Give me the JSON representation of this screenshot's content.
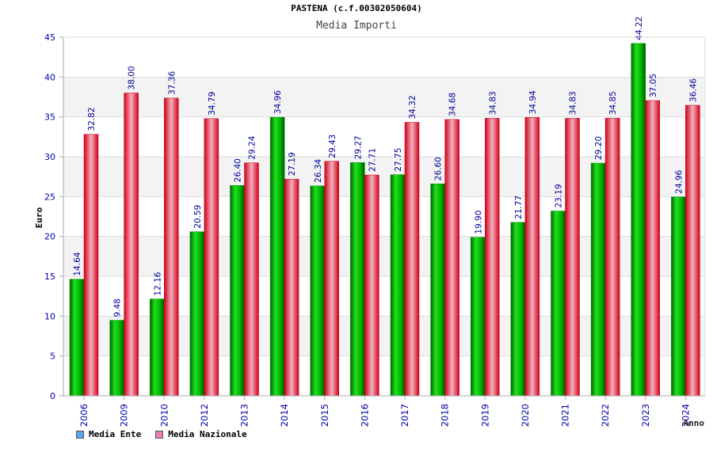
{
  "chart_data": {
    "type": "bar",
    "title": "PASTENA (c.f.00302050604)",
    "subtitle": "Media Importi",
    "ylabel": "Euro",
    "xlabel": "Anno",
    "ylim": [
      0,
      45
    ],
    "yticks": [
      0,
      5,
      10,
      15,
      20,
      25,
      30,
      35,
      40,
      45
    ],
    "categories": [
      "2006",
      "2009",
      "2010",
      "2012",
      "2013",
      "2014",
      "2015",
      "2016",
      "2017",
      "2018",
      "2019",
      "2020",
      "2021",
      "2022",
      "2023",
      "2024"
    ],
    "series": [
      {
        "name": "Media Ente",
        "color": "#00c000",
        "values": [
          14.64,
          9.48,
          12.16,
          20.59,
          26.4,
          34.96,
          26.34,
          29.27,
          27.75,
          26.6,
          19.9,
          21.77,
          23.19,
          29.2,
          44.22,
          24.96
        ]
      },
      {
        "name": "Media Nazionale",
        "color": "#e8102a",
        "values": [
          32.82,
          38.0,
          37.36,
          34.79,
          29.24,
          27.19,
          29.43,
          27.71,
          34.32,
          34.68,
          34.83,
          34.94,
          34.83,
          34.85,
          37.05,
          36.46
        ]
      }
    ],
    "grid": true,
    "legend_position": "bottom-left"
  },
  "legend": {
    "items": [
      {
        "label": "Media Ente",
        "color": "#5fa3e8"
      },
      {
        "label": "Media Nazionale",
        "color": "#e87fb2"
      }
    ]
  }
}
